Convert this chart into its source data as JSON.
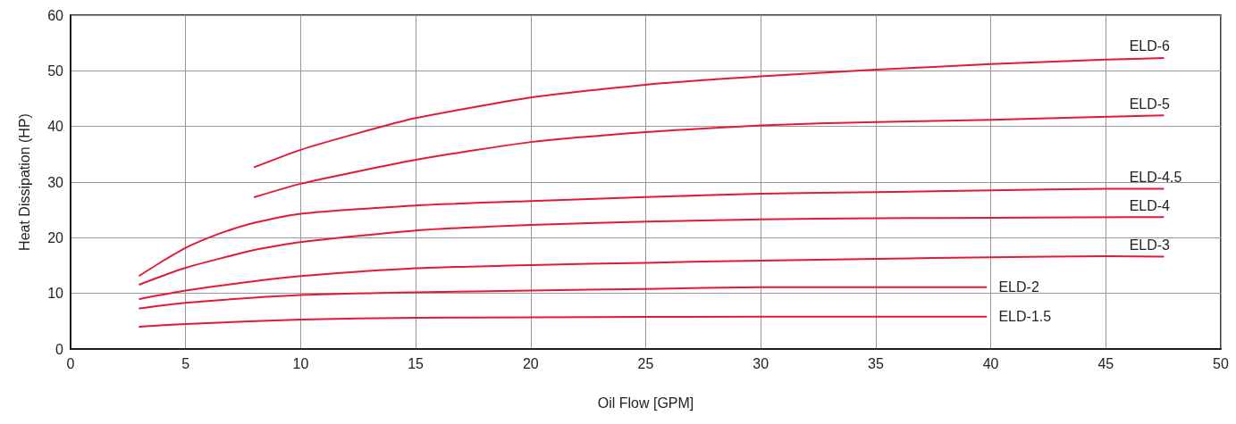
{
  "chart_data": {
    "type": "line",
    "xlabel": "Oil Flow [GPM]",
    "ylabel": "Heat Dissipation (HP)",
    "xlim": [
      0,
      50
    ],
    "xticks": [
      0,
      5,
      10,
      15,
      20,
      25,
      30,
      35,
      40,
      45,
      50
    ],
    "ylim": [
      0,
      60
    ],
    "yticks": [
      0,
      10,
      20,
      30,
      40,
      50,
      60
    ],
    "grid": true,
    "legend": false,
    "marker": "none",
    "line_style": "solid",
    "series": [
      {
        "name": "ELD-6",
        "color": "#e31937",
        "x": [
          8,
          10,
          12.5,
          15,
          20,
          25,
          30,
          35,
          40,
          45,
          47.5
        ],
        "values": [
          32.7,
          35.8,
          38.8,
          41.5,
          45.2,
          47.5,
          49,
          50.2,
          51.2,
          52,
          52.3
        ]
      },
      {
        "name": "ELD-5",
        "color": "#e31937",
        "x": [
          8,
          10,
          15,
          20,
          25,
          30,
          35,
          40,
          47.5
        ],
        "values": [
          27.3,
          29.7,
          34,
          37.2,
          39,
          40.2,
          40.8,
          41.2,
          42
        ]
      },
      {
        "name": "ELD-4.5",
        "color": "#e31937",
        "x": [
          3,
          4,
          5,
          6,
          7,
          8,
          10,
          15,
          20,
          25,
          30,
          35,
          40,
          45,
          47.5
        ],
        "values": [
          13.2,
          15.8,
          18.2,
          20,
          21.5,
          22.7,
          24.3,
          25.8,
          26.6,
          27.3,
          27.9,
          28.2,
          28.5,
          28.8,
          28.8
        ]
      },
      {
        "name": "ELD-4",
        "color": "#e31937",
        "x": [
          3,
          5,
          8,
          10,
          15,
          20,
          25,
          30,
          35,
          40,
          47.5
        ],
        "values": [
          11.6,
          14.6,
          17.8,
          19.2,
          21.3,
          22.3,
          22.9,
          23.3,
          23.5,
          23.6,
          23.7
        ]
      },
      {
        "name": "ELD-3",
        "color": "#e31937",
        "x": [
          3,
          5,
          8,
          10,
          15,
          20,
          25,
          30,
          35,
          40,
          45,
          47.5
        ],
        "values": [
          9,
          10.5,
          12.2,
          13.1,
          14.5,
          15.1,
          15.5,
          15.9,
          16.2,
          16.5,
          16.7,
          16.6
        ]
      },
      {
        "name": "ELD-2",
        "color": "#e31937",
        "x": [
          3,
          5,
          10,
          15,
          20,
          25,
          30,
          35,
          39.8
        ],
        "values": [
          7.3,
          8.3,
          9.7,
          10.2,
          10.5,
          10.8,
          11.1,
          11.1,
          11.1
        ]
      },
      {
        "name": "ELD-1.5",
        "color": "#e31937",
        "x": [
          3,
          5,
          10,
          15,
          20,
          30,
          39.8
        ],
        "values": [
          4,
          4.5,
          5.3,
          5.6,
          5.7,
          5.8,
          5.8
        ]
      }
    ]
  }
}
